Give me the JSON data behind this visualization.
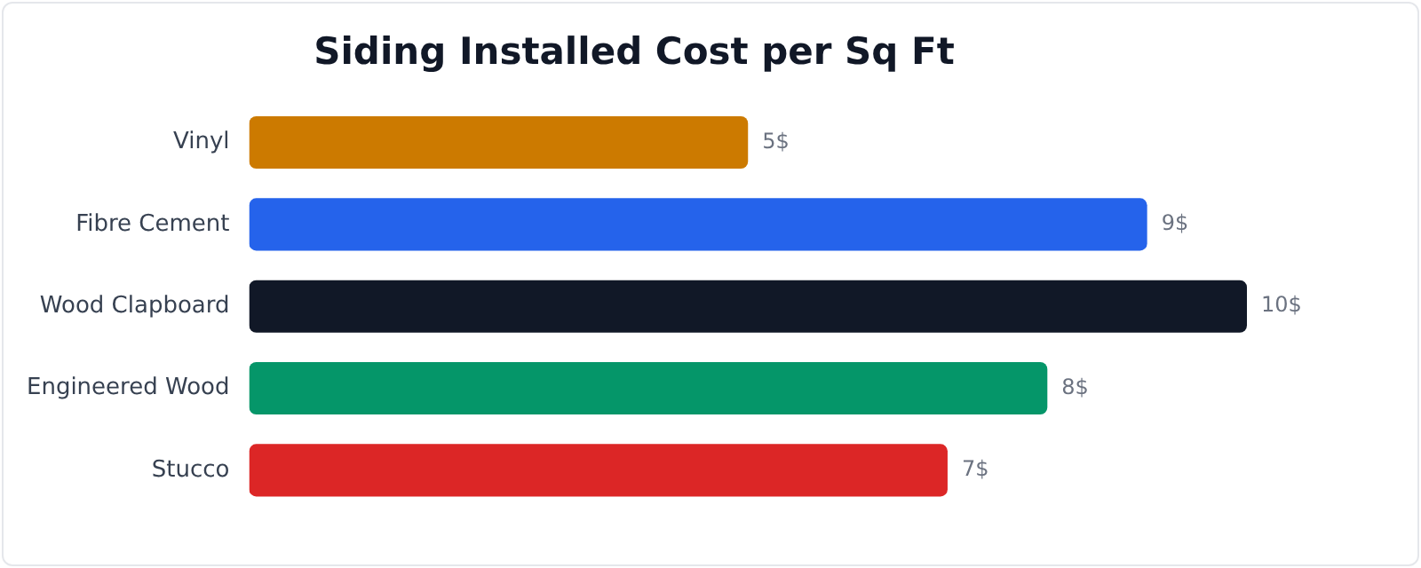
{
  "chart_data": {
    "type": "bar",
    "orientation": "horizontal",
    "title": "Siding Installed Cost per Sq Ft",
    "categories": [
      "Vinyl",
      "Fibre Cement",
      "Wood Clapboard",
      "Engineered Wood",
      "Stucco"
    ],
    "values": [
      5,
      9,
      10,
      8,
      7
    ],
    "colors": [
      "#cc7a00",
      "#2563eb",
      "#111827",
      "#059669",
      "#dc2626"
    ],
    "value_labels": [
      "5$",
      "9$",
      "10$",
      "8$",
      "7$"
    ],
    "legend": false
  }
}
